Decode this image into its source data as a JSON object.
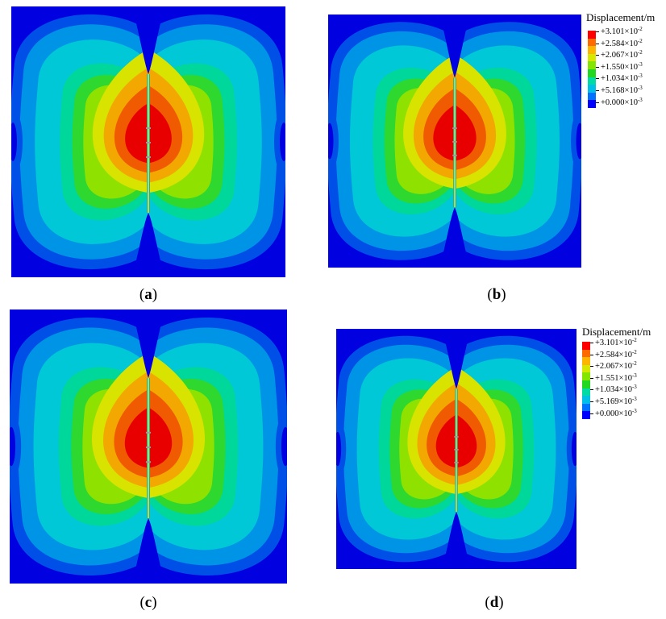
{
  "legend": {
    "title": "Displacement/m",
    "colors": [
      "#ff0000",
      "#ff6a00",
      "#ffb400",
      "#d6e800",
      "#84e600",
      "#1fd81f",
      "#00dba3",
      "#00c0e8",
      "#0072ff",
      "#0000ff"
    ],
    "labels_b": [
      {
        "mantissa": "+3.101×10",
        "exp": "-2"
      },
      {
        "mantissa": "+2.584×10",
        "exp": "-2"
      },
      {
        "mantissa": "+2.067×10",
        "exp": "-2"
      },
      {
        "mantissa": "+1.550×10",
        "exp": "-3"
      },
      {
        "mantissa": "+1.034×10",
        "exp": "-3"
      },
      {
        "mantissa": "+5.168×10",
        "exp": "-3"
      },
      {
        "mantissa": "+0.000×10",
        "exp": "-3"
      }
    ],
    "labels_d": [
      {
        "mantissa": "+3.101×10",
        "exp": "-2"
      },
      {
        "mantissa": "+2.584×10",
        "exp": "-2"
      },
      {
        "mantissa": "+2.067×10",
        "exp": "-2"
      },
      {
        "mantissa": "+1.551×10",
        "exp": "-3"
      },
      {
        "mantissa": "+1.034×10",
        "exp": "-3"
      },
      {
        "mantissa": "+5.169×10",
        "exp": "-3"
      },
      {
        "mantissa": "+0.000×10",
        "exp": "-3"
      }
    ]
  },
  "captions": {
    "a": "a",
    "b": "b",
    "c": "c",
    "d": "d"
  },
  "contour_colors": {
    "c0": "#0000e0",
    "c1": "#0050e8",
    "c2": "#0094e6",
    "c3": "#00c8d6",
    "c4": "#00d79a",
    "c5": "#2ed82e",
    "c6": "#8fe200",
    "c7": "#d8e400",
    "c8": "#f2a800",
    "c9": "#f05a00",
    "c10": "#e80000",
    "fracture": "#3cb44b"
  }
}
